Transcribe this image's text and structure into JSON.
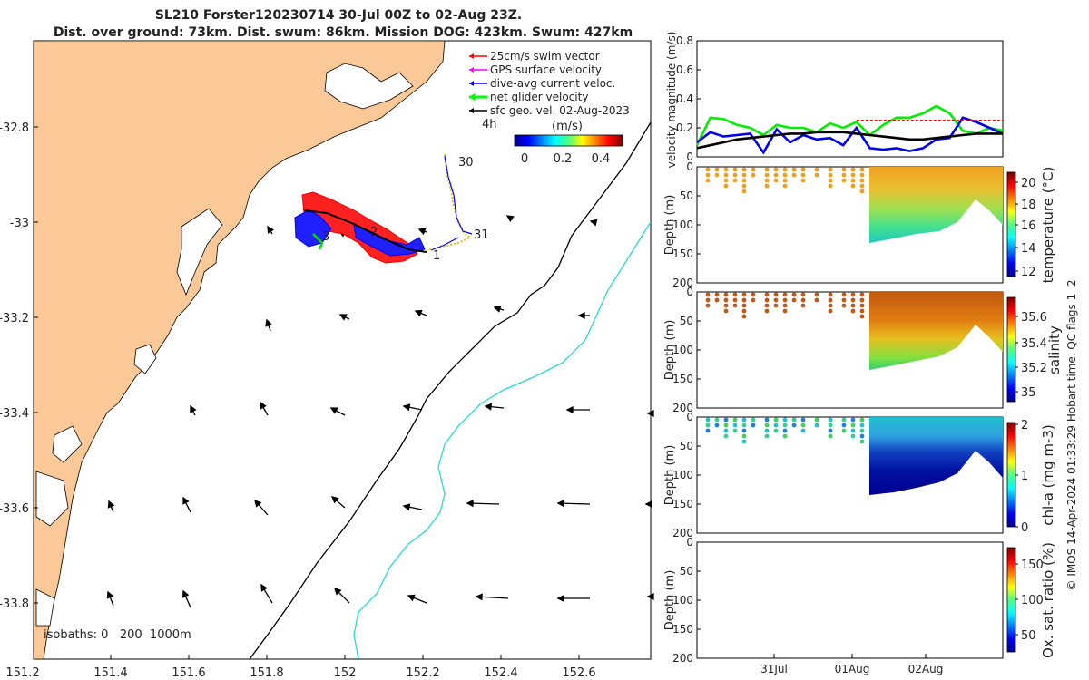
{
  "title": {
    "line1": "SL210 Forster120230714 30-Jul 00Z to 02-Aug 23Z.",
    "line2": "Dist. over ground: 73km. Dist. swum: 86km. Mission DOG: 423km. Swum: 427km"
  },
  "legend": {
    "items": [
      {
        "label": "25cm/s swim vector",
        "color": "#ff0000"
      },
      {
        "label": "GPS surface velocity",
        "color": "#ff00ff"
      },
      {
        "label": "dive-avg current veloc.",
        "color": "#0000ff"
      },
      {
        "label": "net glider velocity",
        "color": "#00ff00"
      },
      {
        "label": "sfc geo. vel. 02-Aug-2023",
        "color": "#000000"
      }
    ],
    "interval": "4h",
    "colorbar_title": "(m/s)",
    "colorbar_ticks": [
      "0",
      "0.2",
      "0.4"
    ]
  },
  "map": {
    "x_ticks": [
      "151.2",
      "151.4",
      "151.6",
      "151.8",
      "152",
      "152.2",
      "152.4",
      "152.6"
    ],
    "y_ticks": [
      "-32.8",
      "-33",
      "-33.2",
      "-33.4",
      "-33.6",
      "-33.8"
    ],
    "isobaths_label": "isobaths: 0   200  1000m",
    "day_labels": [
      "30",
      "31",
      "1",
      "2",
      "3"
    ],
    "colors": {
      "land": "#fbc897",
      "isobath_200": "#000000",
      "isobath_1000": "#25d9d9",
      "track": "#0000ff"
    }
  },
  "chart_data": [
    {
      "type": "line",
      "ylabel": "velocity magnitude (m/s)",
      "ylim": [
        0,
        0.8
      ],
      "y_ticks": [
        "0",
        "0.2",
        "0.4",
        "0.6",
        "0.8"
      ],
      "series": [
        {
          "color": "#00ee00",
          "values": [
            0.08,
            0.27,
            0.26,
            0.22,
            0.2,
            0.15,
            0.22,
            0.2,
            0.2,
            0.17,
            0.23,
            0.2,
            0.24,
            0.15,
            0.22,
            0.27,
            0.27,
            0.3,
            0.35,
            0.3,
            0.18,
            0.16,
            0.2,
            0.18
          ]
        },
        {
          "color": "#0000ee",
          "values": [
            0.1,
            0.17,
            0.14,
            0.15,
            0.16,
            0.03,
            0.19,
            0.1,
            0.15,
            0.12,
            0.13,
            0.08,
            0.2,
            0.06,
            0.05,
            0.06,
            0.04,
            0.06,
            0.12,
            0.13,
            0.27,
            0.24,
            0.2,
            0.16
          ]
        },
        {
          "color": "#000000",
          "values": [
            0.06,
            0.08,
            0.1,
            0.12,
            0.13,
            0.14,
            0.15,
            0.16,
            0.16,
            0.17,
            0.17,
            0.17,
            0.16,
            0.15,
            0.14,
            0.13,
            0.12,
            0.12,
            0.13,
            0.14,
            0.15,
            0.16,
            0.16,
            0.16
          ]
        },
        {
          "color": "#ff0000",
          "values": [
            null,
            null,
            null,
            null,
            null,
            null,
            null,
            null,
            null,
            null,
            null,
            null,
            0.25,
            0.25,
            0.25,
            0.25,
            0.25,
            0.25,
            0.25,
            0.25,
            0.25,
            0.25,
            0.25,
            0.25
          ]
        }
      ]
    },
    {
      "type": "heatmap",
      "ylabel": "Depth (m)",
      "colorbar_label": "temperature (°C)",
      "colorbar_ticks": [
        "12",
        "14",
        "16",
        "18",
        "20"
      ],
      "y_ticks": [
        "0",
        "50",
        "100",
        "150",
        "200"
      ]
    },
    {
      "type": "heatmap",
      "ylabel": "Depth (m)",
      "colorbar_label": "salinity",
      "colorbar_ticks": [
        "35",
        "35.2",
        "35.4",
        "35.6"
      ],
      "y_ticks": [
        "0",
        "50",
        "100",
        "150",
        "200"
      ]
    },
    {
      "type": "heatmap",
      "ylabel": "Depth (m)",
      "colorbar_label": "chl-a (mg m-3)",
      "colorbar_ticks": [
        "0",
        "1",
        "2"
      ],
      "y_ticks": [
        "0",
        "50",
        "100",
        "150",
        "200"
      ]
    },
    {
      "type": "heatmap",
      "ylabel": "Depth (m)",
      "colorbar_label": "Ox. sat. ratio (%)",
      "colorbar_ticks": [
        "50",
        "100",
        "150"
      ],
      "y_ticks": [
        "0",
        "50",
        "100",
        "150",
        "200"
      ],
      "x_ticks": [
        "31Jul",
        "01Aug",
        "02Aug"
      ]
    }
  ],
  "credit": "© IMOS 14-Apr-2024 01:33:29 Hobart time. QC flags 1  2"
}
